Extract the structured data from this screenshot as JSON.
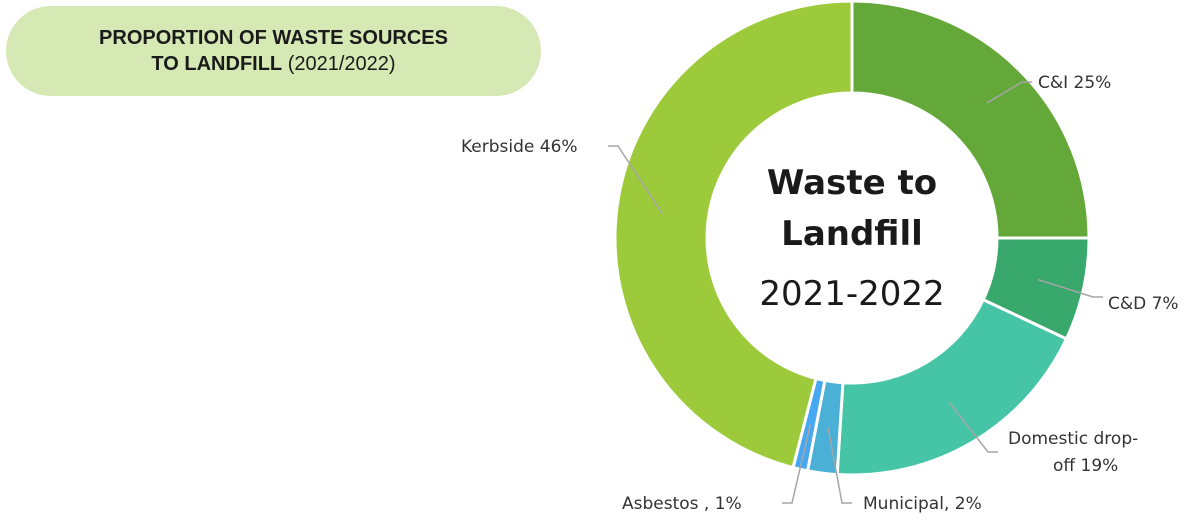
{
  "title": {
    "line1_bold": "PROPORTION OF WASTE SOURCES",
    "line2_bold": "TO LANDFILL",
    "line2_rest": " (2021/2022)"
  },
  "center": {
    "line1": "Waste to",
    "line2": "Landfill",
    "line3": "2021-2022"
  },
  "chart_data": {
    "type": "pie",
    "donut": true,
    "categories": [
      "C&I",
      "C&D",
      "Domestic drop-off",
      "Municipal",
      "Asbestos",
      "Kerbside"
    ],
    "values": [
      25,
      7,
      19,
      2,
      1,
      46
    ],
    "unit": "%",
    "colors": [
      "#64a83a",
      "#38a86c",
      "#45c4a6",
      "#4ab0d6",
      "#46a8f0",
      "#9cca3a"
    ],
    "data_labels": [
      [
        "C&I 25%"
      ],
      [
        "C&D 7%"
      ],
      [
        "Domestic drop-",
        "off 19%"
      ],
      [
        "Municipal, 2%"
      ],
      [
        "Asbestos , 1%"
      ],
      [
        "Kerbside 46%"
      ]
    ]
  }
}
